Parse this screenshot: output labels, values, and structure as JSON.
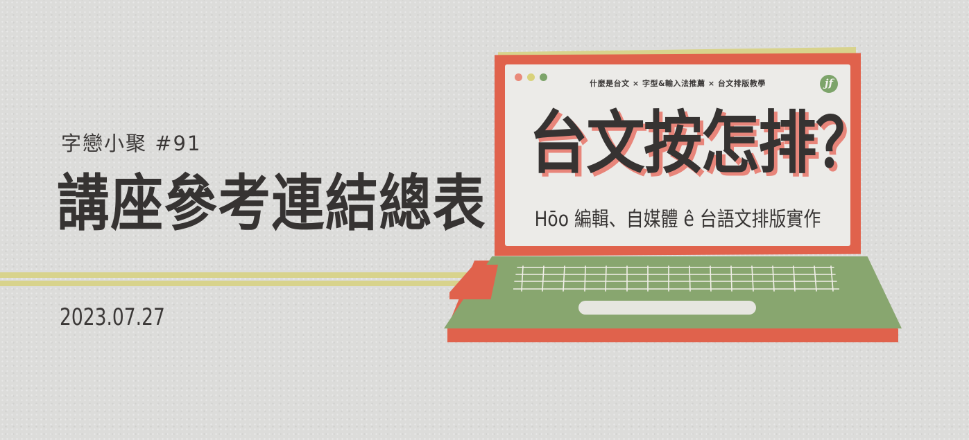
{
  "banner": {
    "series": "字戀小聚 #91",
    "title": "講座參考連結總表",
    "date": "2023.07.27"
  },
  "laptop": {
    "topics": "什麼是台文 × 字型&輸入法推薦 × 台文排版教學",
    "logo_text": "jf",
    "headline": "台文按怎排？",
    "subtitle": "Hōo 編輯、自媒體 ê 台語文排版實作",
    "window_dots": [
      "#e98a7a",
      "#d9d27b",
      "#7da46a"
    ]
  },
  "colors": {
    "background": "#dcdcda",
    "stripe": "#d8d38c",
    "laptop_red": "#e0624c",
    "laptop_green": "#88a66f",
    "ink": "#363332"
  },
  "icons": [
    "window-dot-red-icon",
    "window-dot-yellow-icon",
    "window-dot-green-icon",
    "jf-logo-icon",
    "laptop-illustration"
  ]
}
